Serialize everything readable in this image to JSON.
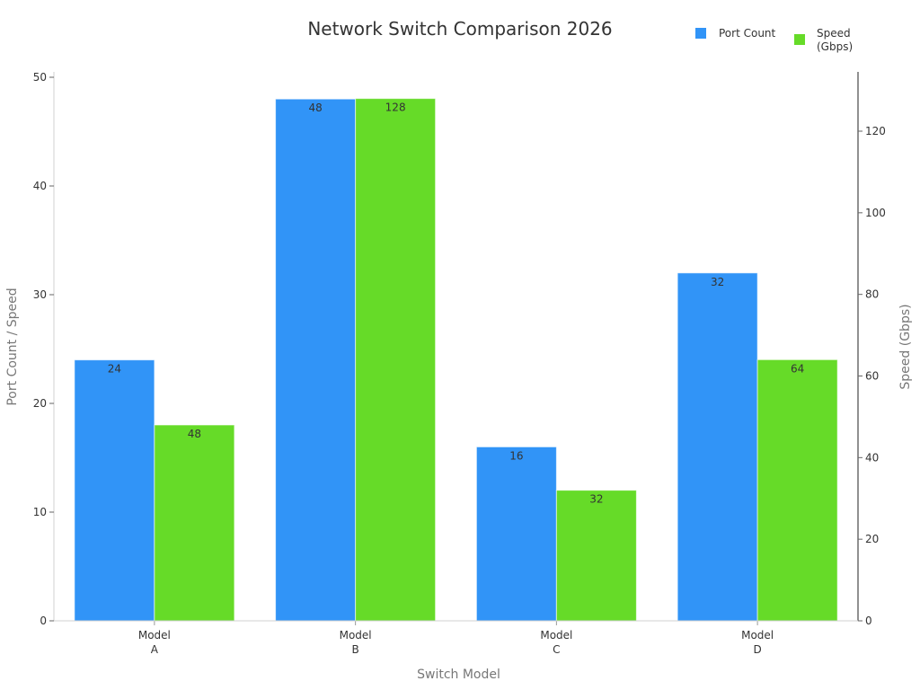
{
  "chart_data": {
    "type": "bar",
    "title": "Network Switch Comparison 2026",
    "xlabel": "Switch Model",
    "ylabel": "Port Count / Speed",
    "y2label": "Speed (Gbps)",
    "categories": [
      "Model A",
      "Model B",
      "Model C",
      "Model D"
    ],
    "category_lines": [
      [
        "Model",
        "A"
      ],
      [
        "Model",
        "B"
      ],
      [
        "Model",
        "C"
      ],
      [
        "Model",
        "D"
      ]
    ],
    "series": [
      {
        "name": "Port Count",
        "axis": "left",
        "color": "#3194f7",
        "values": [
          24,
          48,
          16,
          32
        ]
      },
      {
        "name": "Speed (Gbps)",
        "axis": "right",
        "color": "#66db28",
        "values": [
          48,
          128,
          32,
          64
        ]
      }
    ],
    "ylim": [
      0,
      50
    ],
    "y2lim": [
      0,
      134
    ],
    "yticks": [
      0,
      10,
      20,
      30,
      40,
      50
    ],
    "y2ticks": [
      0,
      20,
      40,
      60,
      80,
      100,
      120
    ],
    "grid": false,
    "legend_position": "top-right",
    "data_labels": true
  },
  "legend": {
    "items": [
      {
        "label": "Port Count",
        "color": "#3194f7"
      },
      {
        "label_line1": "Speed",
        "label_line2": "(Gbps)",
        "color": "#66db28"
      }
    ]
  }
}
